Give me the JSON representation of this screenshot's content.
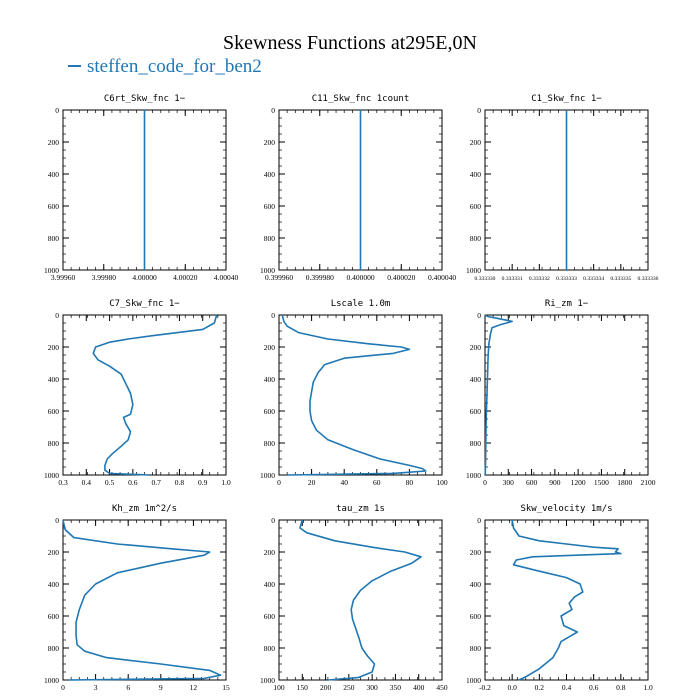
{
  "title": "Skewness Functions at295E,0N",
  "legend": {
    "label": "steffen_code_for_ben2",
    "color": "#1f77b4"
  },
  "line_color": "#1f77b4",
  "chart_data": [
    {
      "type": "line",
      "title": "C6rt_Skw_fnc  1−",
      "xlim": [
        3.9996,
        4.0004
      ],
      "ylim": [
        0,
        1000
      ],
      "y_inverted": true,
      "xticks": [
        3.9996,
        3.9998,
        4.0,
        4.0002,
        4.0004
      ],
      "xticklabels": [
        "3.99960",
        "3.99980",
        "4.00000",
        "4.00020",
        "4.00040"
      ],
      "yticks": [
        0,
        200,
        400,
        600,
        800,
        1000
      ],
      "series": [
        {
          "x": [
            4.0,
            4.0
          ],
          "y": [
            0,
            1000
          ]
        }
      ]
    },
    {
      "type": "line",
      "title": "C11_Skw_fnc  1count",
      "xlim": [
        0.39996,
        0.40004
      ],
      "ylim": [
        0,
        1000
      ],
      "y_inverted": true,
      "xticks": [
        0.39996,
        0.39998,
        0.4,
        0.40002,
        0.40004
      ],
      "xticklabels": [
        "0.399960",
        "0.399980",
        "0.400000",
        "0.400020",
        "0.400040"
      ],
      "yticks": [
        0,
        200,
        400,
        600,
        800,
        1000
      ],
      "series": [
        {
          "x": [
            0.4,
            0.4
          ],
          "y": [
            0,
            1000
          ]
        }
      ]
    },
    {
      "type": "line",
      "title": "C1_Skw_fnc  1−",
      "xlim": [
        0.33333,
        0.333336
      ],
      "ylim": [
        0,
        1000
      ],
      "y_inverted": true,
      "xticks": [
        0.33333,
        0.333331,
        0.333332,
        0.333333,
        0.333334,
        0.333335,
        0.333336
      ],
      "xticklabels": [
        "0.333330",
        "0.333331",
        "0.333332",
        "0.333333",
        "0.333334",
        "0.333335",
        "0.333336"
      ],
      "yticks": [
        0,
        200,
        400,
        600,
        800,
        1000
      ],
      "series": [
        {
          "x": [
            0.333333,
            0.333333
          ],
          "y": [
            0,
            1000
          ]
        }
      ]
    },
    {
      "type": "line",
      "title": "C7_Skw_fnc  1−",
      "xlim": [
        0.3,
        1.0
      ],
      "ylim": [
        0,
        1000
      ],
      "y_inverted": true,
      "xticks": [
        0.3,
        0.4,
        0.5,
        0.6,
        0.7,
        0.8,
        0.9,
        1.0
      ],
      "xticklabels": [
        "0.3",
        "0.4",
        "0.5",
        "0.6",
        "0.7",
        "0.8",
        "0.9",
        "1.0"
      ],
      "yticks": [
        0,
        200,
        400,
        600,
        800,
        1000
      ],
      "series": [
        {
          "x": [
            0.96,
            0.95,
            0.9,
            0.68,
            0.58,
            0.5,
            0.44,
            0.43,
            0.45,
            0.5,
            0.55,
            0.57,
            0.59,
            0.6,
            0.59,
            0.56,
            0.57,
            0.59,
            0.58,
            0.55,
            0.51,
            0.49,
            0.48,
            0.48,
            0.5,
            0.67
          ],
          "y": [
            0,
            50,
            90,
            130,
            150,
            170,
            200,
            240,
            280,
            320,
            370,
            430,
            490,
            560,
            620,
            640,
            680,
            730,
            780,
            820,
            870,
            900,
            940,
            970,
            990,
            1000
          ]
        }
      ]
    },
    {
      "type": "line",
      "title": "Lscale  1.0m",
      "xlim": [
        0,
        100
      ],
      "ylim": [
        0,
        1000
      ],
      "y_inverted": true,
      "xticks": [
        0,
        20,
        40,
        60,
        80,
        100
      ],
      "xticklabels": [
        "0",
        "20",
        "40",
        "60",
        "80",
        "100"
      ],
      "yticks": [
        0,
        200,
        400,
        600,
        800,
        1000
      ],
      "series": [
        {
          "x": [
            2,
            3,
            5,
            12,
            30,
            55,
            75,
            80,
            70,
            40,
            28,
            24,
            21,
            20,
            19,
            19,
            20,
            23,
            30,
            45,
            62,
            80,
            88,
            90,
            70,
            5
          ],
          "y": [
            0,
            40,
            70,
            110,
            150,
            180,
            200,
            215,
            240,
            270,
            310,
            360,
            420,
            480,
            540,
            600,
            660,
            720,
            780,
            840,
            900,
            940,
            960,
            975,
            990,
            1000
          ]
        }
      ]
    },
    {
      "type": "line",
      "title": "Ri_zm  1−",
      "xlim": [
        0,
        2100
      ],
      "ylim": [
        0,
        1000
      ],
      "y_inverted": true,
      "xticks": [
        0,
        300,
        600,
        900,
        1200,
        1500,
        1800,
        2100
      ],
      "xticklabels": [
        "0",
        "300",
        "600",
        "900",
        "1200",
        "1500",
        "1800",
        "2100"
      ],
      "yticks": [
        0,
        200,
        400,
        600,
        800,
        1000
      ],
      "series": [
        {
          "x": [
            0,
            40,
            150,
            350,
            200,
            90,
            70,
            50,
            40,
            35,
            30,
            25,
            20,
            15,
            12,
            10,
            8,
            5,
            3,
            0
          ],
          "y": [
            0,
            10,
            20,
            40,
            60,
            80,
            120,
            180,
            260,
            340,
            420,
            500,
            580,
            660,
            740,
            820,
            900,
            960,
            990,
            1000
          ]
        }
      ]
    },
    {
      "type": "line",
      "title": "Kh_zm  1m^2/s",
      "xlim": [
        0,
        15
      ],
      "ylim": [
        0,
        1000
      ],
      "y_inverted": true,
      "xticks": [
        0,
        3,
        6,
        9,
        12,
        15
      ],
      "xticklabels": [
        "0",
        "3",
        "6",
        "9",
        "12",
        "15"
      ],
      "yticks": [
        0,
        200,
        400,
        600,
        800,
        1000
      ],
      "series": [
        {
          "x": [
            0,
            0.2,
            1,
            5,
            10,
            13.5,
            13,
            9,
            5,
            3,
            2,
            1.5,
            1.2,
            1.2,
            1.3,
            2,
            4,
            9,
            13.5,
            14.5,
            13,
            0.5
          ],
          "y": [
            0,
            60,
            110,
            150,
            180,
            200,
            220,
            270,
            330,
            400,
            470,
            560,
            640,
            720,
            780,
            820,
            860,
            900,
            940,
            970,
            990,
            1000
          ]
        }
      ]
    },
    {
      "type": "line",
      "title": "tau_zm  1s",
      "xlim": [
        100,
        450
      ],
      "ylim": [
        0,
        1000
      ],
      "y_inverted": true,
      "xticks": [
        100,
        150,
        200,
        250,
        300,
        350,
        400,
        450
      ],
      "xticklabels": [
        "100",
        "150",
        "200",
        "250",
        "300",
        "350",
        "400",
        "450"
      ],
      "yticks": [
        0,
        200,
        400,
        600,
        800,
        1000
      ],
      "series": [
        {
          "x": [
            150,
            145,
            160,
            220,
            300,
            370,
            405,
            385,
            340,
            300,
            275,
            260,
            255,
            258,
            265,
            272,
            278,
            290,
            305,
            300,
            270,
            205
          ],
          "y": [
            0,
            50,
            80,
            130,
            170,
            200,
            230,
            270,
            320,
            380,
            440,
            500,
            560,
            620,
            680,
            740,
            800,
            850,
            900,
            950,
            985,
            1000
          ]
        }
      ]
    },
    {
      "type": "line",
      "title": "Skw_velocity  1m/s",
      "xlim": [
        -0.2,
        1.0
      ],
      "ylim": [
        0,
        1000
      ],
      "y_inverted": true,
      "xticks": [
        -0.2,
        0.0,
        0.2,
        0.4,
        0.6,
        0.8,
        1.0
      ],
      "xticklabels": [
        "-0.2",
        "0.0",
        "0.2",
        "0.4",
        "0.6",
        "0.8",
        "1.0"
      ],
      "yticks": [
        0,
        200,
        400,
        600,
        800,
        1000
      ],
      "series": [
        {
          "x": [
            0.0,
            0.01,
            0.05,
            0.2,
            0.4,
            0.6,
            0.78,
            0.76,
            0.8,
            0.15,
            0.03,
            0.01,
            0.2,
            0.4,
            0.5,
            0.52,
            0.46,
            0.42,
            0.44,
            0.36,
            0.38,
            0.48,
            0.36,
            0.34,
            0.3,
            0.2,
            0.1,
            0.05
          ],
          "y": [
            0,
            50,
            100,
            130,
            150,
            170,
            180,
            200,
            210,
            230,
            250,
            280,
            320,
            360,
            400,
            450,
            480,
            520,
            560,
            600,
            660,
            700,
            760,
            800,
            860,
            930,
            980,
            1000
          ]
        }
      ]
    }
  ]
}
